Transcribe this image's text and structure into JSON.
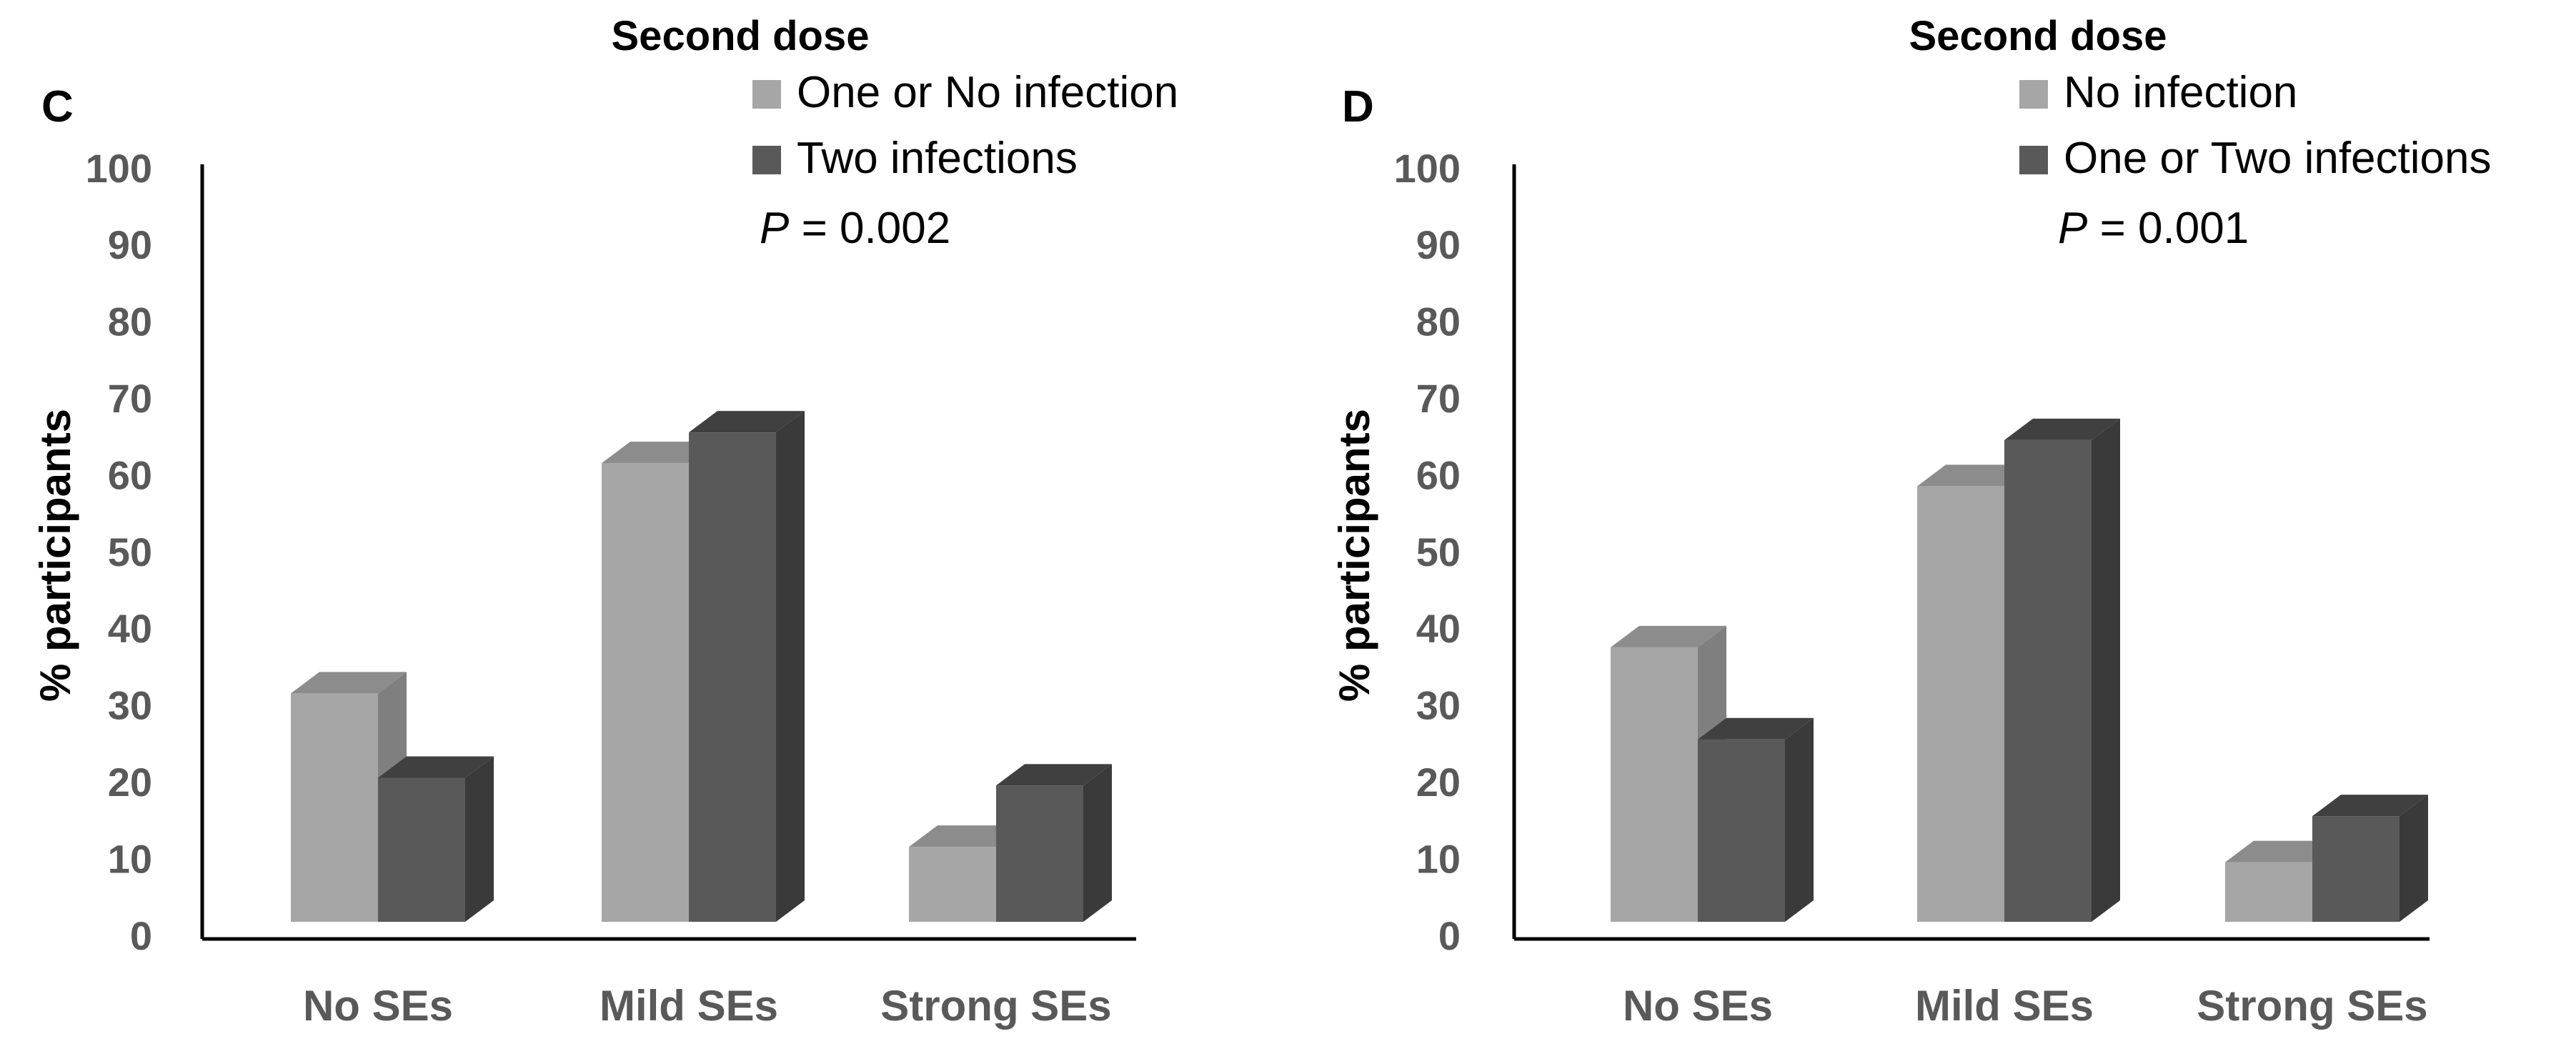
{
  "chart_data": [
    {
      "type": "bar",
      "panel_label": "C",
      "title": "Second dose",
      "ylabel": "% participants",
      "xlabel": "",
      "ylim": [
        0,
        100
      ],
      "yticks": [
        "0",
        "10",
        "20",
        "30",
        "40",
        "50",
        "60",
        "70",
        "80",
        "90",
        "100"
      ],
      "categories": [
        "No SEs",
        "Mild SEs",
        "Strong SEs"
      ],
      "series": [
        {
          "name": "One or No infection",
          "values": [
            32,
            62,
            12
          ],
          "color": "#a6a6a6",
          "side_color": "#7f7f7f",
          "top_color": "#8c8c8c"
        },
        {
          "name": "Two infections",
          "values": [
            21,
            66,
            20
          ],
          "color": "#595959",
          "side_color": "#3a3a3a",
          "top_color": "#404040"
        }
      ],
      "p_label": "P",
      "p_value": " = 0.002",
      "style": "3d-clustered-column",
      "legend_position": "top-right"
    },
    {
      "type": "bar",
      "panel_label": "D",
      "title": "Second dose",
      "ylabel": "% participants",
      "xlabel": "",
      "ylim": [
        0,
        100
      ],
      "yticks": [
        "0",
        "10",
        "20",
        "30",
        "40",
        "50",
        "60",
        "70",
        "80",
        "90",
        "100"
      ],
      "categories": [
        "No SEs",
        "Mild SEs",
        "Strong SEs"
      ],
      "series": [
        {
          "name": "No infection",
          "values": [
            38,
            59,
            10
          ],
          "color": "#a6a6a6",
          "side_color": "#7f7f7f",
          "top_color": "#8c8c8c"
        },
        {
          "name": "One or Two infections",
          "values": [
            26,
            65,
            16
          ],
          "color": "#595959",
          "side_color": "#3a3a3a",
          "top_color": "#404040"
        }
      ],
      "p_label": "P",
      "p_value": " = 0.001",
      "style": "3d-clustered-column",
      "legend_position": "top-right"
    }
  ]
}
